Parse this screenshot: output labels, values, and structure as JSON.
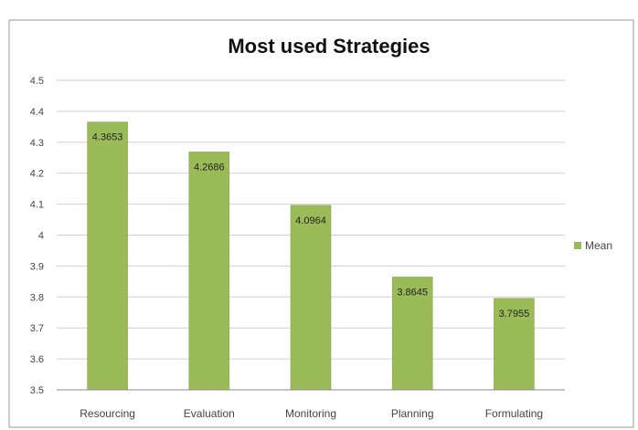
{
  "chart_data": {
    "type": "bar",
    "title": "Most used Strategies",
    "categories": [
      "Resourcing",
      "Evaluation",
      "Monitoring",
      "Planning",
      "Formulating"
    ],
    "series": [
      {
        "name": "Mean",
        "values": [
          4.3653,
          4.2686,
          4.0964,
          3.8645,
          3.7955
        ],
        "labels": [
          "4.3653",
          "4.2686",
          "4.0964",
          "3.8645",
          "3.7955"
        ]
      }
    ],
    "ylim": [
      3.5,
      4.5
    ],
    "yticks": [
      3.5,
      3.6,
      3.7,
      3.8,
      3.9,
      4,
      4.1,
      4.2,
      4.3,
      4.4,
      4.5
    ],
    "ytick_labels": [
      "3.5",
      "3.6",
      "3.7",
      "3.8",
      "3.9",
      "4",
      "4.1",
      "4.2",
      "4.3",
      "4.4",
      "4.5"
    ],
    "grid": true,
    "legend": "right",
    "colors": {
      "bar": "#9bbb59",
      "bar_edge": "#7f9f3f",
      "grid": "#d0d0d0",
      "axis": "#888888",
      "frame": "#9a9a9a"
    }
  }
}
